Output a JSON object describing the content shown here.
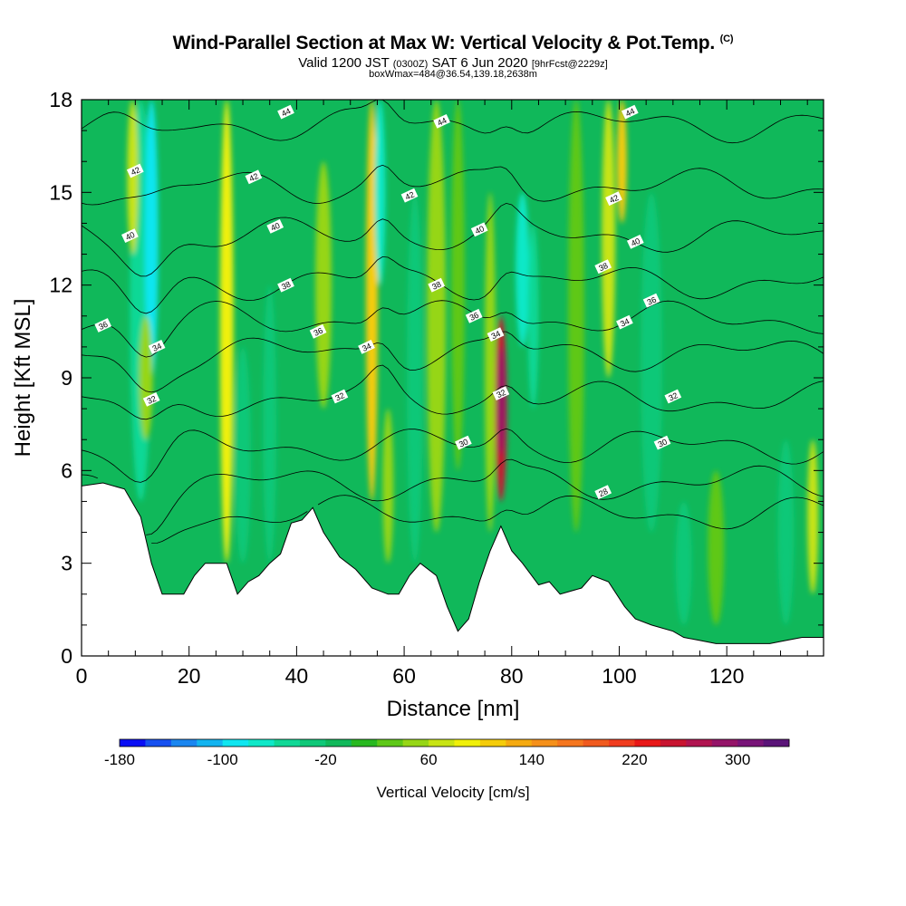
{
  "header": {
    "title": "Wind-Parallel Section at Max W: Vertical Velocity & Pot.Temp.",
    "title_mark": "(C)",
    "valid_prefix": "Valid 1200 JST",
    "valid_utc": "(0300Z)",
    "valid_date": "SAT 6 Jun 2020",
    "forecast": "[9hrFcst@2229z]",
    "box_info": "boxWmax=484@36.54,139.18,2638m"
  },
  "chart_data": {
    "type": "heatmap",
    "title": "Wind-Parallel Section at Max W: Vertical Velocity & Pot.Temp.",
    "xlabel": "Distance [nm]",
    "ylabel": "Height [Kft MSL]",
    "xlim": [
      0,
      138
    ],
    "ylim": [
      0,
      18
    ],
    "xticks": [
      0,
      20,
      40,
      60,
      80,
      100,
      120
    ],
    "yticks": [
      0,
      3,
      6,
      9,
      12,
      15,
      18
    ],
    "grid": false,
    "terrain_kft": [
      [
        0,
        5.5
      ],
      [
        4,
        5.6
      ],
      [
        8,
        5.4
      ],
      [
        11,
        4.5
      ],
      [
        13,
        3
      ],
      [
        15,
        2
      ],
      [
        19,
        2
      ],
      [
        21,
        2.6
      ],
      [
        23,
        3
      ],
      [
        27,
        3
      ],
      [
        29,
        2
      ],
      [
        31,
        2.4
      ],
      [
        33,
        2.6
      ],
      [
        35,
        3
      ],
      [
        37,
        3.3
      ],
      [
        39,
        4.3
      ],
      [
        41,
        4.4
      ],
      [
        43,
        4.8
      ],
      [
        45,
        4
      ],
      [
        48,
        3.2
      ],
      [
        51,
        2.8
      ],
      [
        54,
        2.2
      ],
      [
        57,
        2
      ],
      [
        59,
        2
      ],
      [
        61,
        2.6
      ],
      [
        63,
        3
      ],
      [
        66,
        2.6
      ],
      [
        68,
        1.6
      ],
      [
        70,
        0.8
      ],
      [
        72,
        1.2
      ],
      [
        74,
        2.4
      ],
      [
        76,
        3.4
      ],
      [
        78,
        4.2
      ],
      [
        80,
        3.4
      ],
      [
        82,
        3
      ],
      [
        85,
        2.3
      ],
      [
        87,
        2.4
      ],
      [
        89,
        2
      ],
      [
        93,
        2.2
      ],
      [
        95,
        2.6
      ],
      [
        98,
        2.4
      ],
      [
        101,
        1.6
      ],
      [
        103,
        1.2
      ],
      [
        106,
        1
      ],
      [
        110,
        0.8
      ],
      [
        112,
        0.6
      ],
      [
        115,
        0.5
      ],
      [
        118,
        0.4
      ],
      [
        122,
        0.4
      ],
      [
        128,
        0.4
      ],
      [
        131,
        0.5
      ],
      [
        134,
        0.6
      ],
      [
        138,
        0.6
      ]
    ],
    "vertical_velocity_features": [
      {
        "x": 11,
        "ybot": 5,
        "ytop": 18,
        "w": 4,
        "value": -60
      },
      {
        "x": 13,
        "ybot": 9,
        "ytop": 18,
        "w": 2.5,
        "value": -90
      },
      {
        "x": 9.5,
        "ybot": 13,
        "ytop": 18,
        "w": 2,
        "value": 70
      },
      {
        "x": 12,
        "ybot": 7,
        "ytop": 11,
        "w": 2.5,
        "value": 40
      },
      {
        "x": 27,
        "ybot": 3,
        "ytop": 18,
        "w": 2.5,
        "value": 80
      },
      {
        "x": 30,
        "ybot": 3,
        "ytop": 10,
        "w": 3,
        "value": -40
      },
      {
        "x": 35,
        "ybot": 3,
        "ytop": 12,
        "w": 2.5,
        "value": -30
      },
      {
        "x": 45,
        "ybot": 8,
        "ytop": 16,
        "w": 3,
        "value": 40
      },
      {
        "x": 54,
        "ybot": 5,
        "ytop": 18,
        "w": 2.2,
        "value": 110
      },
      {
        "x": 55.5,
        "ybot": 12,
        "ytop": 18,
        "w": 2,
        "value": -70
      },
      {
        "x": 57,
        "ybot": 3,
        "ytop": 8,
        "w": 2,
        "value": 40
      },
      {
        "x": 62,
        "ybot": 3,
        "ytop": 15,
        "w": 3,
        "value": -30
      },
      {
        "x": 66,
        "ybot": 4,
        "ytop": 18,
        "w": 3.5,
        "value": 50
      },
      {
        "x": 70,
        "ybot": 6,
        "ytop": 18,
        "w": 2.5,
        "value": 30
      },
      {
        "x": 78,
        "ybot": 5,
        "ytop": 11,
        "w": 2.2,
        "value": 240
      },
      {
        "x": 78,
        "ybot": 6.5,
        "ytop": 10,
        "w": 1.4,
        "value": 280
      },
      {
        "x": 82,
        "ybot": 10,
        "ytop": 15,
        "w": 2.5,
        "value": -70
      },
      {
        "x": 84,
        "ybot": 8,
        "ytop": 14,
        "w": 2,
        "value": -50
      },
      {
        "x": 76,
        "ybot": 4,
        "ytop": 15,
        "w": 2,
        "value": 40
      },
      {
        "x": 92,
        "ybot": 4,
        "ytop": 18,
        "w": 3,
        "value": 30
      },
      {
        "x": 98,
        "ybot": 9,
        "ytop": 18,
        "w": 2.5,
        "value": 70
      },
      {
        "x": 100.5,
        "ybot": 14,
        "ytop": 18,
        "w": 1.8,
        "value": 110
      },
      {
        "x": 106,
        "ybot": 4,
        "ytop": 15,
        "w": 4,
        "value": -30
      },
      {
        "x": 112,
        "ybot": 1,
        "ytop": 5,
        "w": 3,
        "value": -40
      },
      {
        "x": 118,
        "ybot": 1,
        "ytop": 6,
        "w": 3,
        "value": 30
      },
      {
        "x": 131,
        "ybot": 1,
        "ytop": 7,
        "w": 3,
        "value": -40
      },
      {
        "x": 136,
        "ybot": 2,
        "ytop": 7,
        "w": 2,
        "value": 60
      }
    ],
    "theta_contours": [
      26,
      28,
      30,
      32,
      34,
      36,
      38,
      40,
      42,
      44
    ],
    "theta_contour_labels": [
      {
        "text": "44",
        "x": 38,
        "y": 17.6
      },
      {
        "text": "44",
        "x": 67,
        "y": 17.3
      },
      {
        "text": "44",
        "x": 102,
        "y": 17.6
      },
      {
        "text": "42",
        "x": 10,
        "y": 15.7
      },
      {
        "text": "42",
        "x": 32,
        "y": 15.5
      },
      {
        "text": "42",
        "x": 61,
        "y": 14.9
      },
      {
        "text": "42",
        "x": 99,
        "y": 14.8
      },
      {
        "text": "40",
        "x": 9,
        "y": 13.6
      },
      {
        "text": "40",
        "x": 36,
        "y": 13.9
      },
      {
        "text": "40",
        "x": 74,
        "y": 13.8
      },
      {
        "text": "40",
        "x": 103,
        "y": 13.4
      },
      {
        "text": "38",
        "x": 38,
        "y": 12.0
      },
      {
        "text": "38",
        "x": 66,
        "y": 12.0
      },
      {
        "text": "38",
        "x": 97,
        "y": 12.6
      },
      {
        "text": "36",
        "x": 4,
        "y": 10.7
      },
      {
        "text": "36",
        "x": 44,
        "y": 10.5
      },
      {
        "text": "36",
        "x": 73,
        "y": 11.0
      },
      {
        "text": "36",
        "x": 106,
        "y": 11.5
      },
      {
        "text": "34",
        "x": 14,
        "y": 10.0
      },
      {
        "text": "34",
        "x": 53,
        "y": 10.0
      },
      {
        "text": "34",
        "x": 77,
        "y": 10.4
      },
      {
        "text": "34",
        "x": 101,
        "y": 10.8
      },
      {
        "text": "32",
        "x": 13,
        "y": 8.3
      },
      {
        "text": "32",
        "x": 48,
        "y": 8.4
      },
      {
        "text": "32",
        "x": 78,
        "y": 8.5
      },
      {
        "text": "32",
        "x": 110,
        "y": 8.4
      },
      {
        "text": "30",
        "x": 71,
        "y": 6.9
      },
      {
        "text": "30",
        "x": 108,
        "y": 6.9
      },
      {
        "text": "28",
        "x": 97,
        "y": 5.3
      }
    ],
    "colorbar": {
      "label": "Vertical Velocity [cm/s]",
      "min": -180,
      "max": 340,
      "step": 20,
      "tick_values": [
        -180,
        -100,
        -20,
        60,
        140,
        220,
        300
      ],
      "tick_labels": [
        "-180",
        "-100",
        "-20",
        "60",
        "140",
        "220",
        "300"
      ],
      "colors": [
        "#0a0ef5",
        "#1650f0",
        "#1a86f0",
        "#13b4f0",
        "#0fe6f0",
        "#0fe8c8",
        "#10d896",
        "#0fc878",
        "#10b85a",
        "#28b820",
        "#5ec818",
        "#96d616",
        "#c8e414",
        "#f0f00a",
        "#f5cc0a",
        "#f5aa10",
        "#f5901a",
        "#f5761e",
        "#f05a1e",
        "#f03c1e",
        "#e81818",
        "#c81430",
        "#b01450",
        "#941468",
        "#781478",
        "#5a1478"
      ]
    }
  }
}
